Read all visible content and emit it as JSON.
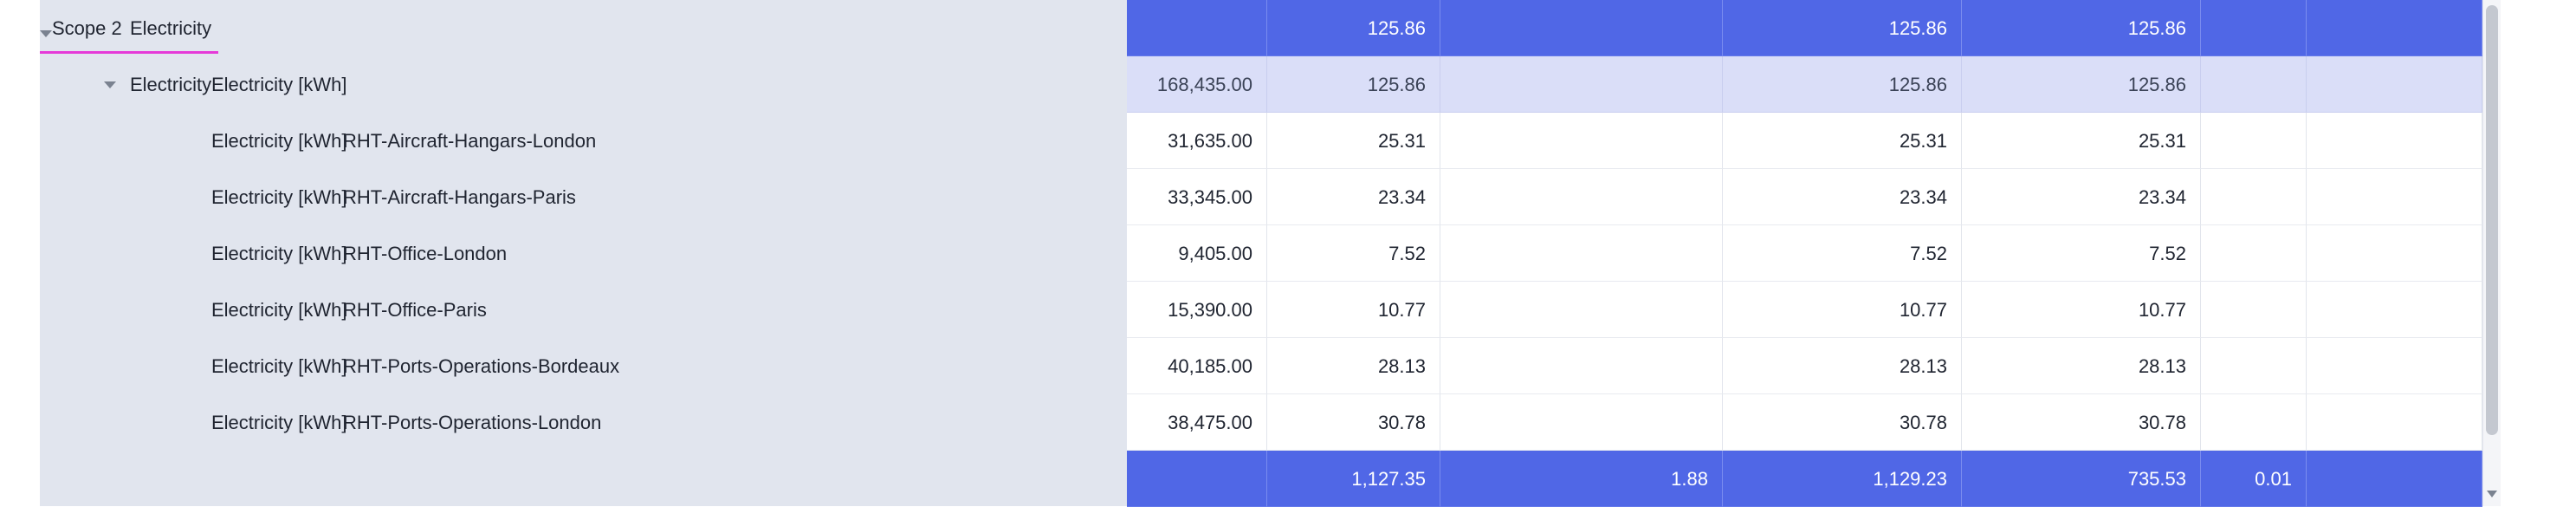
{
  "pivot": {
    "rows": [
      {
        "kind": "total",
        "scope": "Scope 2",
        "category": "Electricity",
        "unit": "",
        "site": "",
        "values": [
          "",
          "125.86",
          "",
          "125.86",
          "125.86",
          "",
          ""
        ]
      },
      {
        "kind": "subtotal",
        "scope": "",
        "category": "Electricity",
        "unit": "Electricity [kWh]",
        "site": "",
        "values": [
          "168,435.00",
          "125.86",
          "",
          "125.86",
          "125.86",
          "",
          ""
        ]
      },
      {
        "kind": "detail",
        "scope": "",
        "category": "",
        "unit": "Electricity [kWh]",
        "site": "RHT-Aircraft-Hangars-London",
        "values": [
          "31,635.00",
          "25.31",
          "",
          "25.31",
          "25.31",
          "",
          ""
        ]
      },
      {
        "kind": "detail",
        "scope": "",
        "category": "",
        "unit": "Electricity [kWh]",
        "site": "RHT-Aircraft-Hangars-Paris",
        "values": [
          "33,345.00",
          "23.34",
          "",
          "23.34",
          "23.34",
          "",
          ""
        ]
      },
      {
        "kind": "detail",
        "scope": "",
        "category": "",
        "unit": "Electricity [kWh]",
        "site": "RHT-Office-London",
        "values": [
          "9,405.00",
          "7.52",
          "",
          "7.52",
          "7.52",
          "",
          ""
        ]
      },
      {
        "kind": "detail",
        "scope": "",
        "category": "",
        "unit": "Electricity [kWh]",
        "site": "RHT-Office-Paris",
        "values": [
          "15,390.00",
          "10.77",
          "",
          "10.77",
          "10.77",
          "",
          ""
        ]
      },
      {
        "kind": "detail",
        "scope": "",
        "category": "",
        "unit": "Electricity [kWh]",
        "site": "RHT-Ports-Operations-Bordeaux",
        "values": [
          "40,185.00",
          "28.13",
          "",
          "28.13",
          "28.13",
          "",
          ""
        ]
      },
      {
        "kind": "detail",
        "scope": "",
        "category": "",
        "unit": "Electricity [kWh]",
        "site": "RHT-Ports-Operations-London",
        "values": [
          "38,475.00",
          "30.78",
          "",
          "30.78",
          "30.78",
          "",
          ""
        ]
      },
      {
        "kind": "total",
        "scope": "",
        "category": "",
        "unit": "",
        "site": "",
        "values": [
          "",
          "1,127.35",
          "1.88",
          "1,129.23",
          "735.53",
          "0.01",
          ""
        ]
      }
    ]
  },
  "icons": {
    "expand": "caret-down-icon",
    "scroll": "scroll-down-icon"
  },
  "colors": {
    "total_bg": "#5067e6",
    "subtotal_bg": "#dadef8",
    "row_header_bg": "#e1e5ee",
    "active_underline": "#e53ad8"
  }
}
